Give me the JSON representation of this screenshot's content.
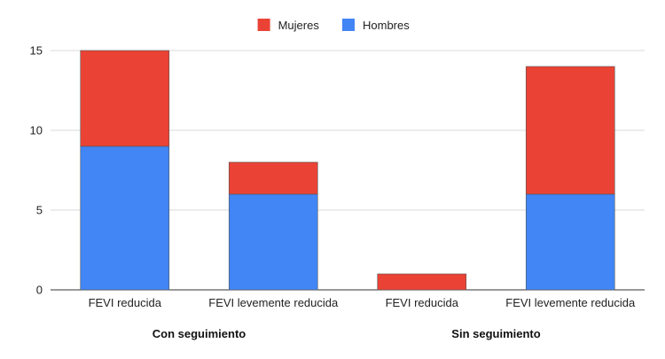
{
  "chart_data": {
    "type": "bar",
    "stacked": true,
    "categories": [
      "FEVI reducida",
      "FEVI levemente reducida",
      "FEVI reducida",
      "FEVI levemente reducida"
    ],
    "groups": [
      {
        "label": "Con seguimiento",
        "categories": [
          0,
          1
        ]
      },
      {
        "label": "Sin seguimiento",
        "categories": [
          2,
          3
        ]
      }
    ],
    "series": [
      {
        "name": "Hombres",
        "color": "#4285f4",
        "values": [
          9,
          6,
          0,
          6
        ]
      },
      {
        "name": "Mujeres",
        "color": "#ea4335",
        "values": [
          6,
          2,
          1,
          8
        ]
      }
    ],
    "legend_order": [
      "Mujeres",
      "Hombres"
    ],
    "legend_position": "top",
    "ylim": [
      0,
      15
    ],
    "yticks": [
      0,
      5,
      10,
      15
    ],
    "grid": true,
    "title": "",
    "xlabel": "",
    "ylabel": ""
  }
}
